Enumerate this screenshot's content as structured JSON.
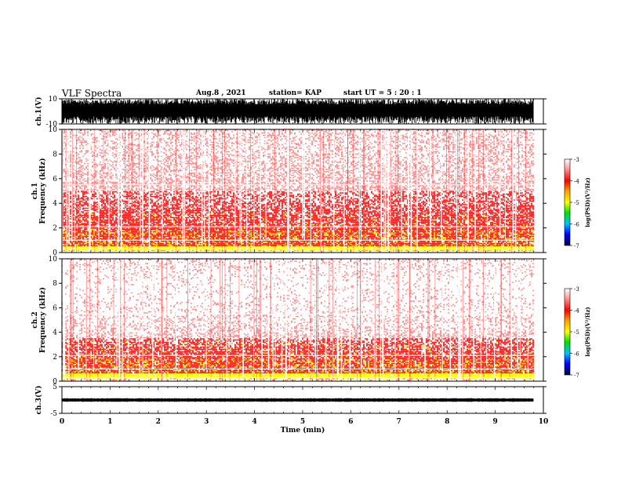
{
  "header": {
    "title": "VLF Spectra",
    "date": "Aug.8  , 2021",
    "station": "station= KAP",
    "start_ut": "start  UT  =   5  : 20 : 1"
  },
  "colors": {
    "spectrum_dense": "#ff2020",
    "spectrum_sparse": "#ff9090",
    "spectrum_hot": "#ffff00",
    "waveform": "#000000"
  },
  "chart_data": [
    {
      "id": "ch1-waveform",
      "type": "line",
      "ylabel": "ch.1(V)",
      "ylim": [
        -10,
        10
      ],
      "yticks": [
        -10,
        10
      ],
      "ytick_labels": [
        "-10",
        "10"
      ],
      "xlim": [
        0,
        10
      ],
      "description_values": {
        "max_amplitude": 10,
        "min_amplitude": -10
      }
    },
    {
      "id": "ch1-spectrogram",
      "type": "heatmap",
      "ylabel": "ch.1\nFrequency (kHz)",
      "ylim": [
        0,
        10
      ],
      "yticks": [
        0,
        2,
        4,
        6,
        8,
        10
      ],
      "ytick_labels": [
        "0",
        "2",
        "4",
        "6",
        "8",
        "10"
      ],
      "xlim": [
        0,
        10
      ],
      "data_end_min": 9.8,
      "colorbar": {
        "label": "log(PSD)(V²/Hz)",
        "range": [
          -7,
          -3
        ],
        "ticks": [
          -3,
          -4,
          -5,
          -6,
          -7
        ],
        "tick_labels": [
          "-3",
          "-4",
          "-5",
          "-6",
          "-7"
        ]
      },
      "intensity_profile": [
        {
          "freq_khz": 0.2,
          "log_psd": -3.3
        },
        {
          "freq_khz": 1.0,
          "log_psd": -3.6
        },
        {
          "freq_khz": 1.5,
          "log_psd": -3.5
        },
        {
          "freq_khz": 2.5,
          "log_psd": -3.8
        },
        {
          "freq_khz": 3.2,
          "log_psd": -3.8
        },
        {
          "freq_khz": 4.0,
          "log_psd": -4.2
        },
        {
          "freq_khz": 6.0,
          "log_psd": -4.4
        },
        {
          "freq_khz": 8.0,
          "log_psd": -4.6
        },
        {
          "freq_khz": 10.0,
          "log_psd": -4.6
        }
      ]
    },
    {
      "id": "ch2-spectrogram",
      "type": "heatmap",
      "ylabel": "ch.2\nFrequency (kHz)",
      "ylim": [
        0,
        10
      ],
      "yticks": [
        0,
        2,
        4,
        6,
        8,
        10
      ],
      "ytick_labels": [
        "0",
        "2",
        "4",
        "6",
        "8",
        "10"
      ],
      "xlim": [
        0,
        10
      ],
      "data_end_min": 9.8,
      "colorbar": {
        "label": "log(PSD)(V²/Hz)",
        "range": [
          -7,
          -3
        ],
        "ticks": [
          -3,
          -4,
          -5,
          -6,
          -7
        ],
        "tick_labels": [
          "-3",
          "-4",
          "-5",
          "-6",
          "-7"
        ]
      },
      "intensity_profile": [
        {
          "freq_khz": 0.2,
          "log_psd": -3.3
        },
        {
          "freq_khz": 1.0,
          "log_psd": -3.5
        },
        {
          "freq_khz": 1.5,
          "log_psd": -3.5
        },
        {
          "freq_khz": 2.5,
          "log_psd": -3.8
        },
        {
          "freq_khz": 3.0,
          "log_psd": -4.0
        },
        {
          "freq_khz": 4.0,
          "log_psd": -4.6
        },
        {
          "freq_khz": 6.0,
          "log_psd": -4.9
        },
        {
          "freq_khz": 8.0,
          "log_psd": -5.0
        },
        {
          "freq_khz": 10.0,
          "log_psd": -4.8
        }
      ]
    },
    {
      "id": "ch3-waveform",
      "type": "line",
      "ylabel": "ch.3(V)",
      "ylim": [
        -5,
        5
      ],
      "yticks": [
        -5,
        5
      ],
      "ytick_labels": [
        "-5",
        "5"
      ],
      "xlim": [
        0,
        10
      ],
      "xlabel": "Time  (min)",
      "xticks": [
        0,
        1,
        2,
        3,
        4,
        5,
        6,
        7,
        8,
        9,
        10
      ],
      "xtick_labels": [
        "0",
        "1",
        "2",
        "3",
        "4",
        "5",
        "6",
        "7",
        "8",
        "9",
        "10"
      ],
      "description_values": {
        "level": 0,
        "band_halfwidth": 0.7
      }
    }
  ]
}
